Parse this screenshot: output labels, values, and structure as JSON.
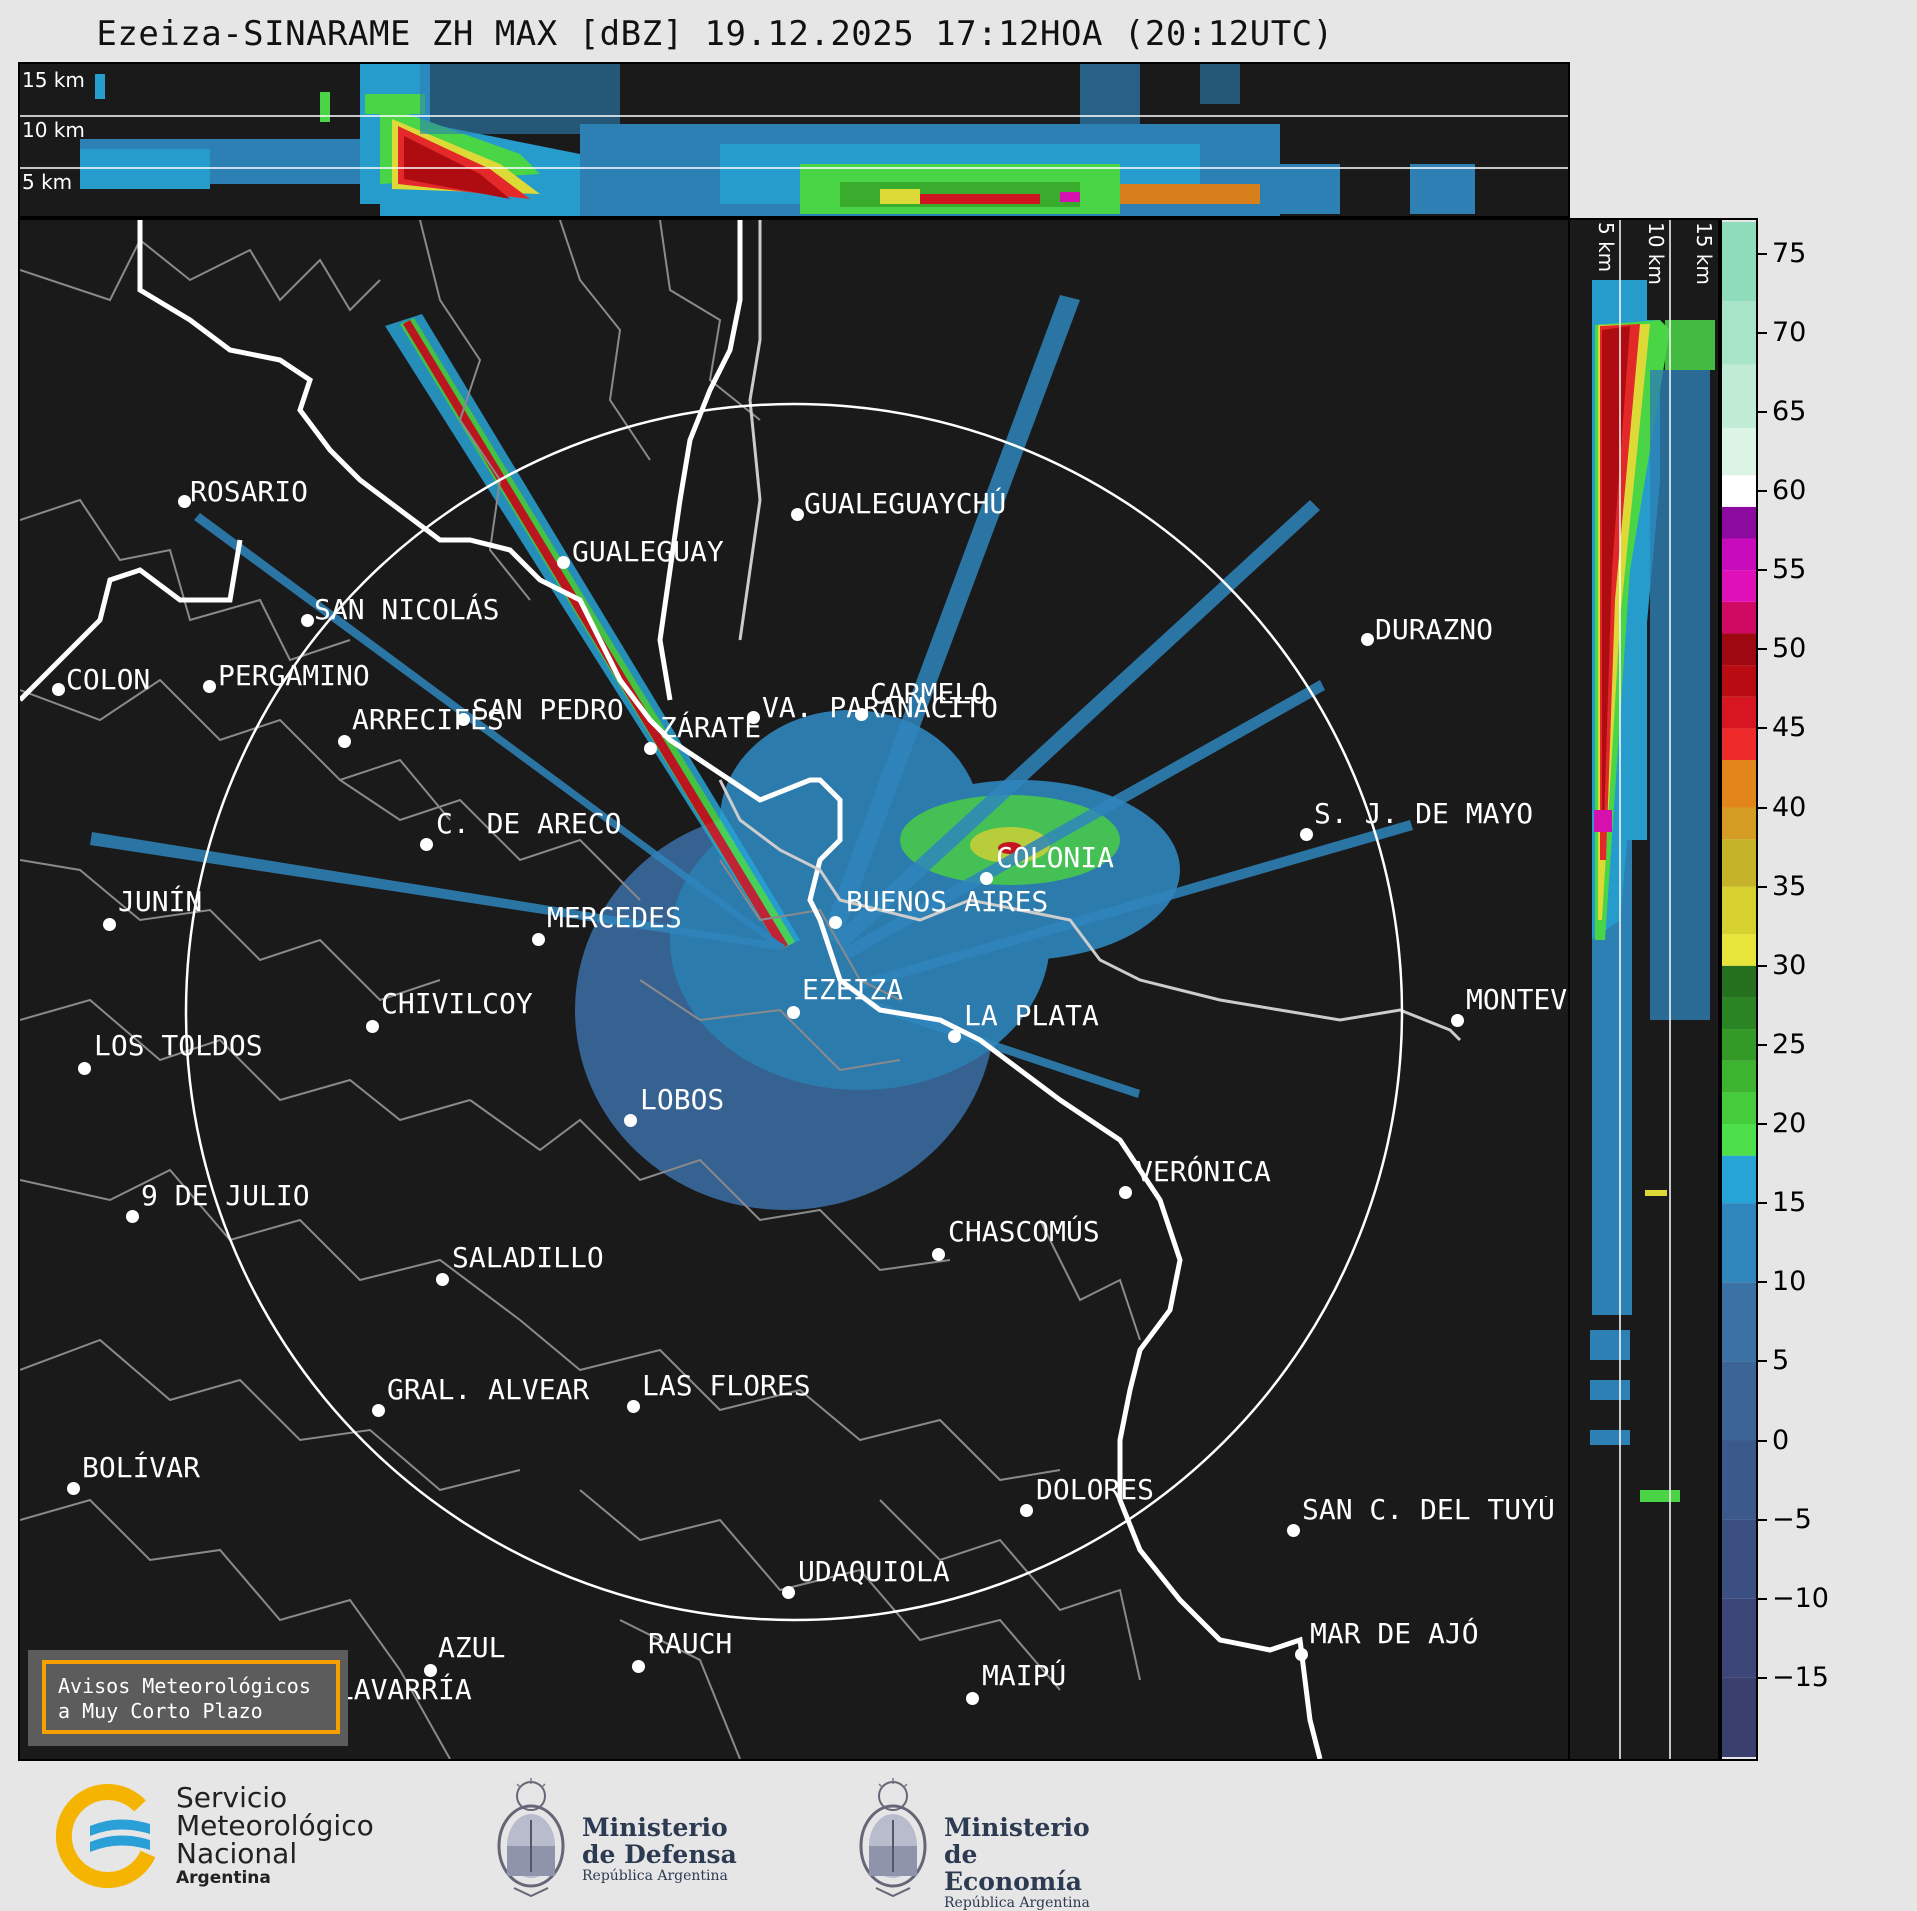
{
  "title": "Ezeiza-SINARAME ZH MAX [dBZ] 19.12.2025 17:12HOA (20:12UTC)",
  "altitude_labels": [
    "15 km",
    "10 km",
    "5 km"
  ],
  "cities": [
    {
      "name": "ROSARIO",
      "id": "rosario"
    },
    {
      "name": "GUALEGUAYCHÚ",
      "id": "gualeguaychu"
    },
    {
      "name": "GUALEGUAY",
      "id": "gualeguay"
    },
    {
      "name": "SAN NICOLÁS",
      "id": "san-nicolas"
    },
    {
      "name": "DURAZNO",
      "id": "durazno"
    },
    {
      "name": "SAN PEDRO",
      "id": "san-pedro"
    },
    {
      "name": "VA. PARANACITO",
      "id": "villa-paranacito"
    },
    {
      "name": "COLON",
      "id": "colon"
    },
    {
      "name": "PERGAMINO",
      "id": "pergamino"
    },
    {
      "name": "CARMELO",
      "id": "carmelo"
    },
    {
      "name": "ARRECIFES",
      "id": "arrecifes"
    },
    {
      "name": "ZÁRATE",
      "id": "zarate"
    },
    {
      "name": "C. DE ARECO",
      "id": "c-de-areco"
    },
    {
      "name": "S. J. DE MAYO",
      "id": "s-j-de-mayo"
    },
    {
      "name": "COLONIA",
      "id": "colonia"
    },
    {
      "name": "JUNÍN",
      "id": "junin"
    },
    {
      "name": "BUENOS AIRES",
      "id": "buenos-aires"
    },
    {
      "name": "MERCEDES",
      "id": "mercedes"
    },
    {
      "name": "EZEIZA",
      "id": "ezeiza"
    },
    {
      "name": "MONTEVIDEO",
      "id": "montevideo"
    },
    {
      "name": "CHIVILCOY",
      "id": "chivilcoy"
    },
    {
      "name": "LA PLATA",
      "id": "la-plata"
    },
    {
      "name": "LOS TOLDOS",
      "id": "los-toldos"
    },
    {
      "name": "LOBOS",
      "id": "lobos"
    },
    {
      "name": "VERÓNICA",
      "id": "veronica"
    },
    {
      "name": "9 DE JULIO",
      "id": "9-de-julio"
    },
    {
      "name": "CHASCOMÚS",
      "id": "chascomus"
    },
    {
      "name": "SALADILLO",
      "id": "saladillo"
    },
    {
      "name": "GRAL. ALVEAR",
      "id": "gral-alvear"
    },
    {
      "name": "LAS FLORES",
      "id": "las-flores"
    },
    {
      "name": "BOLÍVAR",
      "id": "bolivar"
    },
    {
      "name": "DOLORES",
      "id": "dolores"
    },
    {
      "name": "SAN C. DEL TUYÚ",
      "id": "san-c-del-tuyu"
    },
    {
      "name": "UDAQUIOLA",
      "id": "udaquiola"
    },
    {
      "name": "MAR DE AJÓ",
      "id": "mar-de-ajo"
    },
    {
      "name": "AZUL",
      "id": "azul"
    },
    {
      "name": "RAUCH",
      "id": "rauch"
    },
    {
      "name": "OLAVARRÍA",
      "id": "olavarria"
    },
    {
      "name": "MAIPÚ",
      "id": "maipu"
    }
  ],
  "colorbar": {
    "unit": "dBZ",
    "range": [
      -20,
      77
    ],
    "tick_labels": [
      "75",
      "70",
      "65",
      "60",
      "55",
      "50",
      "45",
      "40",
      "35",
      "30",
      "25",
      "20",
      "15",
      "10",
      "5",
      "0",
      "−5",
      "−10",
      "−15"
    ],
    "tick_values": [
      75,
      70,
      65,
      60,
      55,
      50,
      45,
      40,
      35,
      30,
      25,
      20,
      15,
      10,
      5,
      0,
      -5,
      -10,
      -15
    ],
    "bands": [
      {
        "from": -20,
        "to": -15,
        "color": "#3a3f6e"
      },
      {
        "from": -15,
        "to": -10,
        "color": "#3c4678"
      },
      {
        "from": -10,
        "to": -5,
        "color": "#3c4f82"
      },
      {
        "from": -5,
        "to": 0,
        "color": "#3c598c"
      },
      {
        "from": 0,
        "to": 5,
        "color": "#3d6496"
      },
      {
        "from": 5,
        "to": 10,
        "color": "#3a72a6"
      },
      {
        "from": 10,
        "to": 15,
        "color": "#2f86bd"
      },
      {
        "from": 15,
        "to": 18,
        "color": "#27a4d6"
      },
      {
        "from": 18,
        "to": 20,
        "color": "#4de04a"
      },
      {
        "from": 20,
        "to": 22,
        "color": "#45cc3a"
      },
      {
        "from": 22,
        "to": 24,
        "color": "#3cb42f"
      },
      {
        "from": 24,
        "to": 26,
        "color": "#339a28"
      },
      {
        "from": 26,
        "to": 28,
        "color": "#2b8423"
      },
      {
        "from": 28,
        "to": 30,
        "color": "#24701e"
      },
      {
        "from": 30,
        "to": 32,
        "color": "#e8e53a"
      },
      {
        "from": 32,
        "to": 35,
        "color": "#d6d12e"
      },
      {
        "from": 35,
        "to": 38,
        "color": "#c5b42a"
      },
      {
        "from": 38,
        "to": 40,
        "color": "#d49c22"
      },
      {
        "from": 40,
        "to": 43,
        "color": "#e2861c"
      },
      {
        "from": 43,
        "to": 45,
        "color": "#ee2a2a"
      },
      {
        "from": 45,
        "to": 47,
        "color": "#d81622"
      },
      {
        "from": 47,
        "to": 49,
        "color": "#b80c12"
      },
      {
        "from": 49,
        "to": 51,
        "color": "#9e0810"
      },
      {
        "from": 51,
        "to": 53,
        "color": "#d00a62"
      },
      {
        "from": 53,
        "to": 55,
        "color": "#e010b8"
      },
      {
        "from": 55,
        "to": 57,
        "color": "#c80cbd"
      },
      {
        "from": 57,
        "to": 59,
        "color": "#8c0aa0"
      },
      {
        "from": 59,
        "to": 61,
        "color": "#ffffff"
      },
      {
        "from": 61,
        "to": 64,
        "color": "#dcf4e6"
      },
      {
        "from": 64,
        "to": 68,
        "color": "#c0ecd6"
      },
      {
        "from": 68,
        "to": 72,
        "color": "#a8e4c8"
      },
      {
        "from": 72,
        "to": 77,
        "color": "#8edcbc"
      }
    ]
  },
  "avisos": {
    "line1": "Avisos Meteorológicos",
    "line2": "a Muy Corto Plazo"
  },
  "footer": {
    "smn": {
      "line1": "Servicio",
      "line2": "Meteorológico",
      "line3": "Nacional",
      "line4": "Argentina"
    },
    "defensa": {
      "line1": "Ministerio",
      "line2": "de Defensa",
      "sub": "República Argentina"
    },
    "economia": {
      "line1": "Ministerio",
      "line2": "de Economía",
      "sub": "República Argentina"
    }
  },
  "colors": {
    "background": "#1a1a1a",
    "page": "#e6e6e6",
    "accent_orange": "#f5a000",
    "smn_blue": "#2a9fd8",
    "smn_yellow": "#f5b400"
  }
}
